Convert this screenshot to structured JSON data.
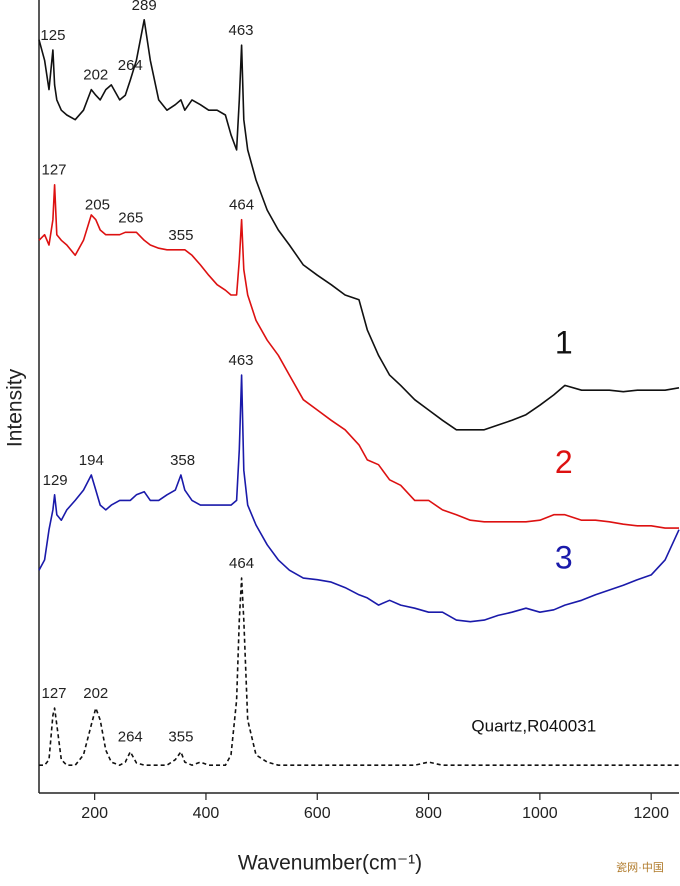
{
  "chart_data": {
    "type": "line",
    "x_label": "Wavenumber(cm⁻¹)",
    "y_label": "Intensity",
    "watermark": "瓷网·中国",
    "xlim": [
      100,
      1250
    ],
    "xticks": [
      200,
      400,
      600,
      800,
      1000,
      1200
    ],
    "ylim": [
      0,
      100
    ],
    "x": [
      100,
      110,
      118,
      125,
      128,
      132,
      140,
      150,
      165,
      180,
      194,
      202,
      210,
      220,
      230,
      245,
      255,
      264,
      275,
      289,
      300,
      315,
      330,
      345,
      355,
      362,
      375,
      390,
      405,
      420,
      435,
      445,
      455,
      460,
      464,
      468,
      475,
      490,
      510,
      530,
      550,
      575,
      600,
      625,
      650,
      675,
      690,
      710,
      730,
      750,
      775,
      800,
      825,
      850,
      875,
      900,
      925,
      950,
      975,
      1000,
      1025,
      1045,
      1075,
      1100,
      1125,
      1150,
      1175,
      1200,
      1225,
      1250
    ],
    "series": [
      {
        "name": "1",
        "color": "#111111",
        "dashed": false,
        "peaks": [
          125,
          202,
          264,
          289,
          463
        ],
        "values": [
          95.0,
          92.4,
          88.7,
          93.7,
          89.3,
          87.4,
          86.1,
          85.5,
          84.9,
          86.1,
          88.7,
          88.0,
          87.4,
          88.7,
          89.3,
          87.4,
          88.0,
          89.9,
          92.4,
          97.5,
          92.4,
          87.4,
          86.1,
          86.8,
          87.4,
          86.1,
          87.4,
          86.8,
          86.1,
          86.1,
          85.5,
          83.0,
          81.1,
          87.4,
          94.3,
          84.9,
          81.1,
          77.3,
          73.5,
          71.0,
          69.1,
          66.6,
          65.3,
          64.1,
          62.8,
          62.2,
          58.4,
          55.2,
          52.7,
          51.4,
          49.6,
          48.3,
          47.0,
          45.8,
          45.8,
          45.8,
          46.4,
          47.0,
          47.7,
          48.9,
          50.2,
          51.4,
          50.8,
          50.8,
          50.8,
          50.6,
          50.8,
          50.8,
          50.8,
          51.1
        ]
      },
      {
        "name": "2",
        "color": "#dd1111",
        "dashed": false,
        "peaks": [
          127,
          205,
          265,
          355,
          464
        ],
        "values": [
          69.7,
          70.4,
          69.1,
          72.3,
          76.7,
          70.4,
          69.7,
          69.1,
          67.8,
          69.7,
          72.9,
          72.3,
          71.0,
          70.4,
          70.4,
          70.4,
          70.7,
          70.7,
          70.7,
          69.7,
          69.1,
          68.7,
          68.5,
          68.5,
          68.5,
          68.5,
          67.8,
          66.6,
          65.3,
          64.1,
          63.4,
          62.8,
          62.8,
          67.2,
          72.3,
          66.0,
          62.8,
          59.6,
          57.1,
          55.2,
          52.7,
          49.6,
          48.3,
          47.0,
          45.8,
          43.9,
          42.0,
          41.4,
          39.5,
          38.8,
          36.9,
          36.9,
          35.7,
          35.1,
          34.4,
          34.2,
          34.2,
          34.2,
          34.2,
          34.4,
          35.1,
          35.1,
          34.4,
          34.4,
          34.2,
          33.9,
          33.7,
          33.7,
          33.4,
          33.4
        ]
      },
      {
        "name": "3",
        "color": "#1a1aaa",
        "dashed": false,
        "peaks": [
          129,
          194,
          358,
          463
        ],
        "values": [
          28.1,
          29.4,
          33.2,
          35.7,
          37.6,
          35.1,
          34.4,
          35.7,
          36.9,
          38.2,
          40.1,
          38.2,
          36.3,
          35.7,
          36.3,
          36.9,
          36.9,
          36.9,
          37.6,
          38.0,
          36.9,
          36.9,
          37.6,
          38.2,
          40.1,
          38.2,
          36.9,
          36.3,
          36.3,
          36.3,
          36.3,
          36.3,
          36.9,
          43.3,
          52.7,
          40.7,
          36.3,
          33.8,
          31.3,
          29.4,
          28.1,
          27.1,
          26.9,
          26.6,
          25.9,
          25.0,
          24.6,
          23.7,
          24.3,
          23.7,
          23.3,
          22.8,
          22.8,
          21.8,
          21.6,
          21.8,
          22.4,
          22.8,
          23.3,
          22.8,
          23.1,
          23.7,
          24.3,
          25.0,
          25.6,
          26.2,
          26.9,
          27.5,
          29.4,
          33.2
        ]
      },
      {
        "name": "Quartz,R040031",
        "color": "#111111",
        "dashed": true,
        "peaks": [
          127,
          202,
          264,
          355,
          464
        ],
        "values": [
          3.5,
          3.5,
          4.2,
          9.8,
          10.7,
          8.6,
          4.2,
          3.5,
          3.5,
          4.8,
          8.6,
          10.7,
          9.2,
          5.4,
          3.9,
          3.5,
          3.9,
          5.2,
          3.8,
          3.5,
          3.5,
          3.5,
          3.5,
          4.2,
          5.2,
          3.9,
          3.5,
          3.9,
          3.5,
          3.5,
          3.5,
          4.8,
          11.7,
          21.8,
          27.1,
          21.8,
          9.2,
          4.8,
          3.9,
          3.5,
          3.5,
          3.5,
          3.5,
          3.5,
          3.5,
          3.5,
          3.5,
          3.5,
          3.5,
          3.5,
          3.5,
          3.9,
          3.5,
          3.5,
          3.5,
          3.5,
          3.5,
          3.5,
          3.5,
          3.5,
          3.5,
          3.5,
          3.5,
          3.5,
          3.5,
          3.5,
          3.5,
          3.5,
          3.5,
          3.5
        ]
      }
    ]
  }
}
